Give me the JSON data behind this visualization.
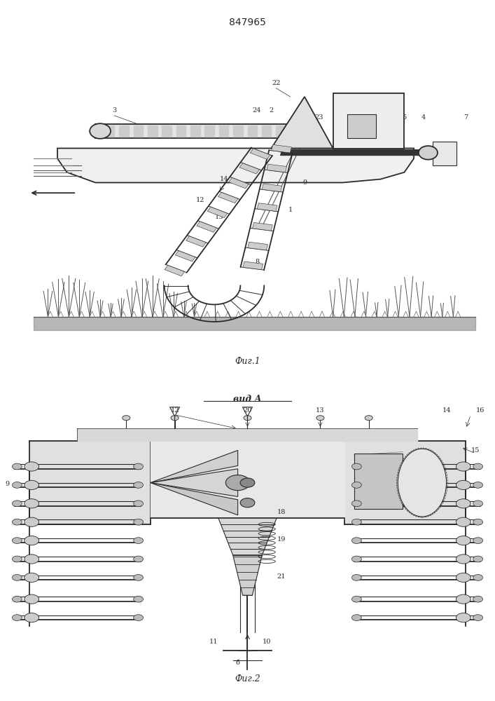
{
  "title": "847965",
  "title_fontsize": 10,
  "fig1_caption": "Фиг.1",
  "fig2_caption": "Фиг.2",
  "vid_a_label": "вид А",
  "background_color": "#ffffff",
  "line_color": "#2a2a2a",
  "fig_width": 7.07,
  "fig_height": 10.0,
  "dpi": 100
}
